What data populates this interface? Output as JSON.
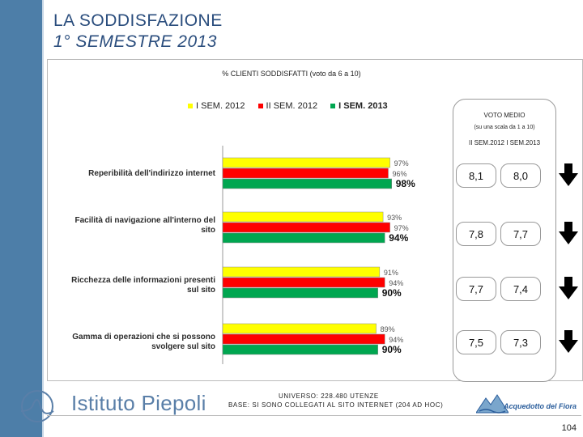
{
  "header": {
    "title_line1": "LA SODDISFAZIONE",
    "title_line2": "1° SEMESTRE 2013"
  },
  "chart_data": {
    "type": "bar",
    "title": "% CLIENTI SODDISFATTI (voto da 6 a 10)",
    "categories": [
      "Reperibilità dell'indirizzo internet",
      "Facilità di navigazione all'interno del sito",
      "Ricchezza delle informazioni presenti sul sito",
      "Gamma di operazioni che si possono svolgere sul sito"
    ],
    "category_lines": [
      [
        "Reperibilità dell'indirizzo internet"
      ],
      [
        "Facilità di navigazione all'interno del",
        "sito"
      ],
      [
        "Ricchezza delle informazioni presenti",
        "sul sito"
      ],
      [
        "Gamma di operazioni che si possono",
        "svolgere sul sito"
      ]
    ],
    "series": [
      {
        "name": "I SEM. 2012",
        "color": "#ffff00",
        "values": [
          97,
          93,
          91,
          89
        ],
        "labels": [
          "97%",
          "93%",
          "91%",
          "89%"
        ]
      },
      {
        "name": "II SEM. 2012",
        "color": "#ff0000",
        "values": [
          96,
          97,
          94,
          94
        ],
        "labels": [
          "96%",
          "97%",
          "94%",
          "94%"
        ]
      },
      {
        "name": "I SEM. 2013",
        "color": "#00a650",
        "values": [
          98,
          94,
          90,
          90
        ],
        "labels": [
          "98%",
          "94%",
          "90%",
          "90%"
        ]
      }
    ],
    "orientation": "horizontal",
    "xlim": [
      0,
      100
    ],
    "legend_position": "top"
  },
  "rating": {
    "title": "VOTO MEDIO",
    "subtitle": "(su una scala da 1 a 10)",
    "columns": "II SEM.2012 I SEM.2013",
    "rows": [
      {
        "prev": "8,1",
        "curr": "8,0",
        "trend": "down"
      },
      {
        "prev": "7,8",
        "curr": "7,7",
        "trend": "down"
      },
      {
        "prev": "7,7",
        "curr": "7,4",
        "trend": "down"
      },
      {
        "prev": "7,5",
        "curr": "7,3",
        "trend": "down"
      }
    ]
  },
  "footer": {
    "universo": "UNIVERSO: 228.480 UTENZE",
    "base": "BASE: SI SONO COLLEGATI AL SITO INTERNET (204 AD HOC)",
    "logo_left": "Istituto Piepoli",
    "logo_right": "Acquedotto del Fiora",
    "page": "104"
  },
  "colors": {
    "sidebar": "#4d7ea8",
    "title": "#2a4d7d",
    "yellow": "#ffff00",
    "red": "#ff0000",
    "green": "#00a650"
  }
}
